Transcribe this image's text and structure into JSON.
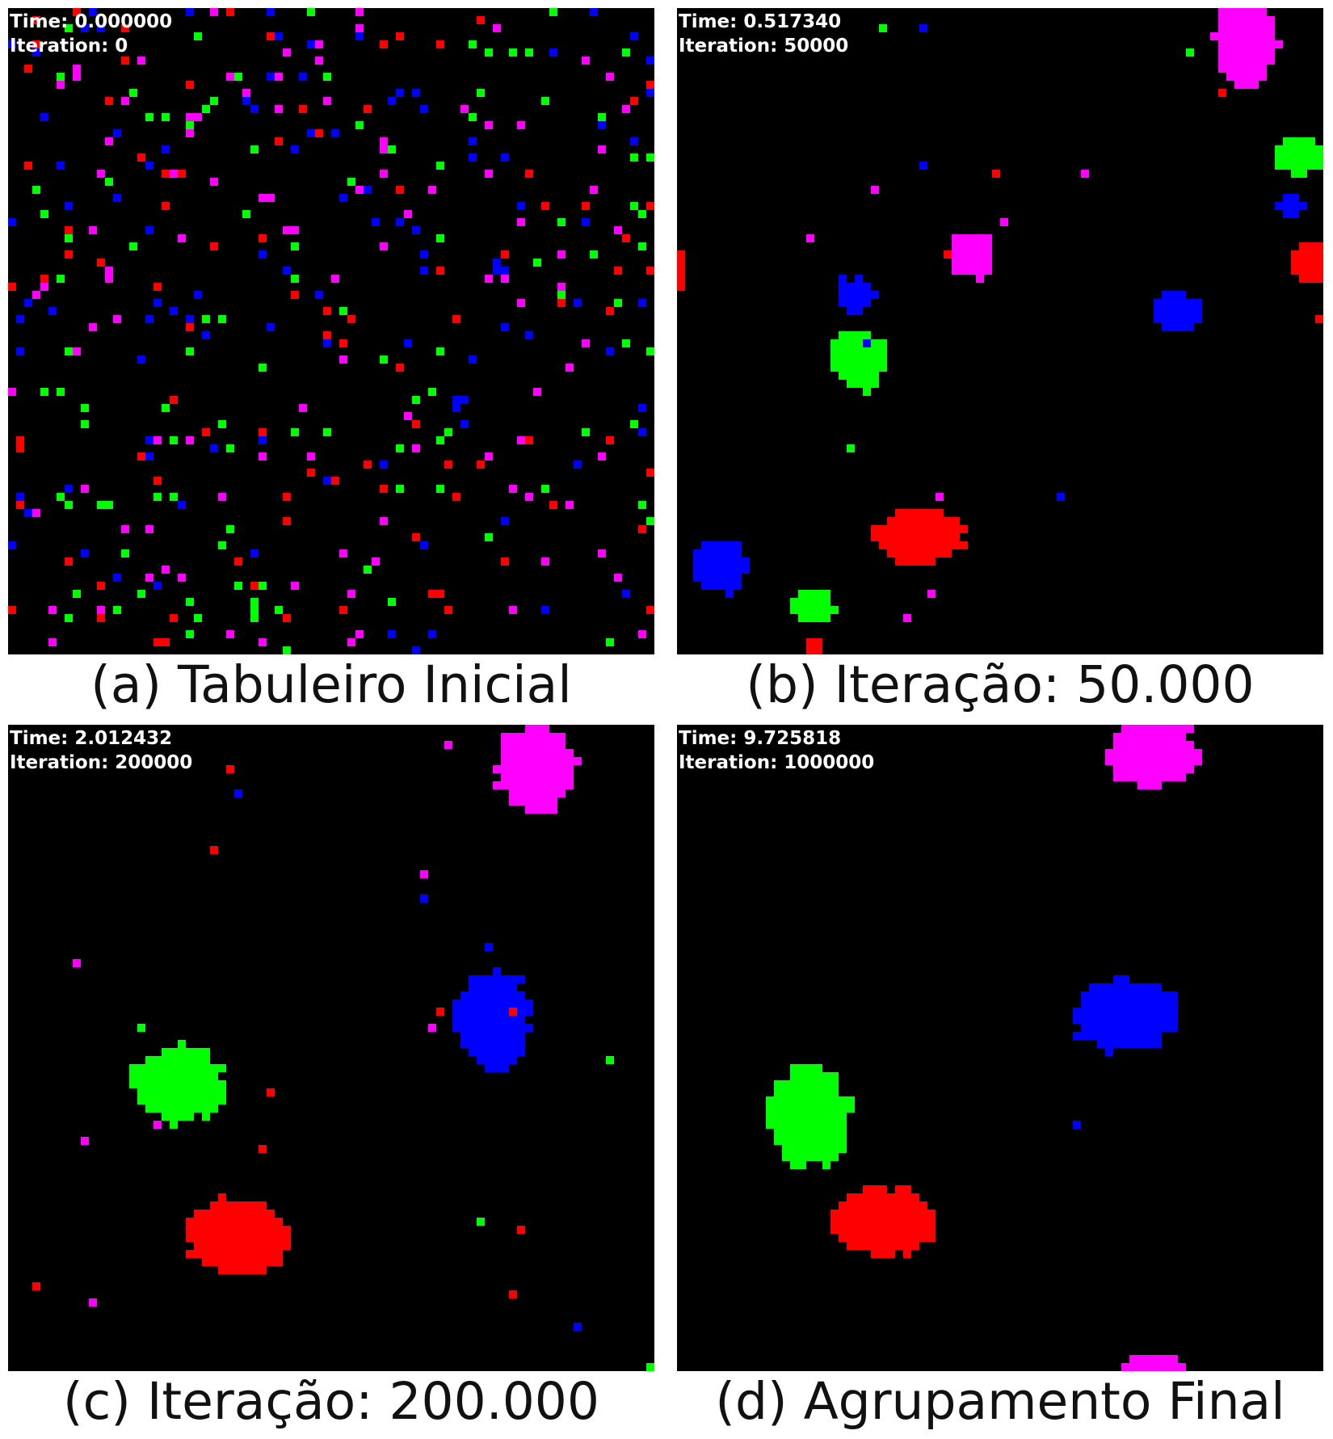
{
  "colors": {
    "background": "#000000",
    "red": "#ff0000",
    "green": "#00ff00",
    "blue": "#0000ff",
    "magenta": "#ff00ff",
    "hud_text": "#ffffff"
  },
  "panels": [
    {
      "id": "a",
      "time_text": "Time: 0.000000",
      "iteration_text": "Iteration: 0",
      "caption": "(a) Tabuleiro Inicial",
      "agents": "scattered",
      "clusters": []
    },
    {
      "id": "b",
      "time_text": "Time: 0.517340",
      "iteration_text": "Iteration: 50000",
      "caption": "(b) Iteração: 50.000",
      "agents": "partial",
      "clusters": [
        {
          "color": "magenta",
          "cx": 70.5,
          "cy": 4.5,
          "rx": 4,
          "ry": 5.5
        },
        {
          "color": "green",
          "cx": 77,
          "cy": 18.5,
          "rx": 3,
          "ry": 2.5
        },
        {
          "color": "blue",
          "cx": 76,
          "cy": 24.5,
          "rx": 1.5,
          "ry": 1.3
        },
        {
          "color": "magenta",
          "cx": 36.5,
          "cy": 30.5,
          "rx": 3,
          "ry": 3
        },
        {
          "color": "red",
          "cx": 78.5,
          "cy": 31.5,
          "rx": 2.5,
          "ry": 2.5
        },
        {
          "color": "blue",
          "cx": 22,
          "cy": 35.5,
          "rx": 2.5,
          "ry": 2.2
        },
        {
          "color": "blue",
          "cx": 62,
          "cy": 37.5,
          "rx": 3,
          "ry": 2.5
        },
        {
          "color": "green",
          "cx": 22.5,
          "cy": 43.5,
          "rx": 3.5,
          "ry": 3.8
        },
        {
          "color": "red",
          "cx": 30,
          "cy": 65.5,
          "rx": 5.5,
          "ry": 3.5
        },
        {
          "color": "blue",
          "cx": 5.5,
          "cy": 69,
          "rx": 3.5,
          "ry": 3.5
        },
        {
          "color": "green",
          "cx": 17,
          "cy": 74,
          "rx": 2.5,
          "ry": 2.3
        },
        {
          "color": "red",
          "cx": 17,
          "cy": 79.5,
          "rx": 1.3,
          "ry": 1.5
        },
        {
          "color": "red",
          "cx": 0.5,
          "cy": 32.5,
          "rx": 1,
          "ry": 2
        }
      ]
    },
    {
      "id": "c",
      "time_text": "Time: 2.012432",
      "iteration_text": "Iteration: 200000",
      "caption": "(c) Iteração: 200.000",
      "agents": "sparse",
      "clusters": [
        {
          "color": "magenta",
          "cx": 65.5,
          "cy": 5.5,
          "rx": 5,
          "ry": 5.5
        },
        {
          "color": "blue",
          "cx": 60,
          "cy": 36.5,
          "rx": 4.5,
          "ry": 6.5
        },
        {
          "color": "green",
          "cx": 21,
          "cy": 44.5,
          "rx": 6,
          "ry": 4.8
        },
        {
          "color": "red",
          "cx": 28.5,
          "cy": 63.5,
          "rx": 6.5,
          "ry": 4.8
        }
      ]
    },
    {
      "id": "d",
      "time_text": "Time: 9.725818",
      "iteration_text": "Iteration: 1000000",
      "caption": "(d) Agrupamento Final",
      "agents": "final",
      "clusters": [
        {
          "color": "magenta",
          "cx": 59,
          "cy": 3.5,
          "rx": 5.5,
          "ry": 4.5
        },
        {
          "color": "blue",
          "cx": 55.5,
          "cy": 36,
          "rx": 6.5,
          "ry": 4.5
        },
        {
          "color": "green",
          "cx": 16.5,
          "cy": 48.5,
          "rx": 5,
          "ry": 6.5
        },
        {
          "color": "red",
          "cx": 26,
          "cy": 61.5,
          "rx": 6.5,
          "ry": 4.2
        },
        {
          "color": "magenta",
          "cx": 59,
          "cy": 79.8,
          "rx": 4.5,
          "ry": 2.2
        }
      ]
    }
  ]
}
